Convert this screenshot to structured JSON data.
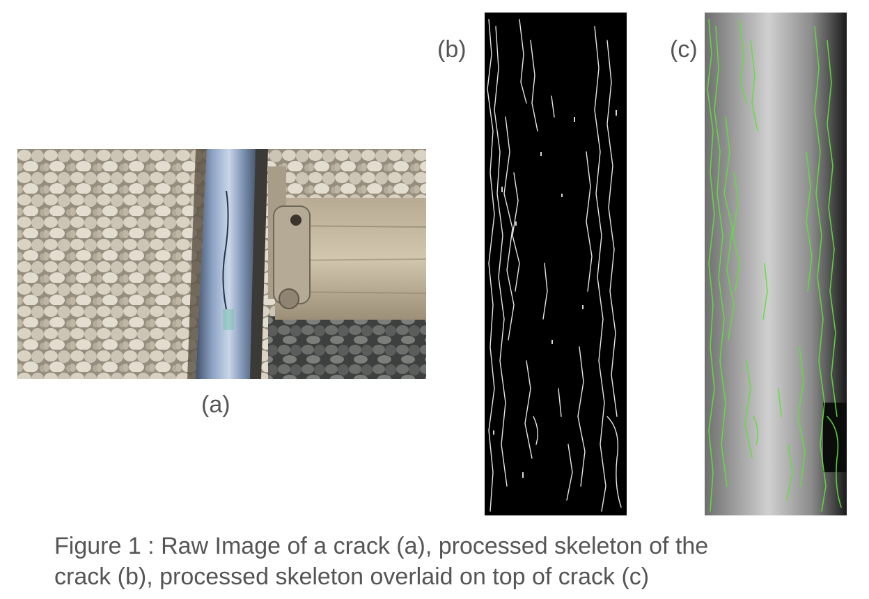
{
  "figure": {
    "panels": [
      {
        "id": "a",
        "label": "(a)",
        "content": "raw-photo"
      },
      {
        "id": "b",
        "label": "(b)",
        "content": "skeleton"
      },
      {
        "id": "c",
        "label": "(c)",
        "content": "skeleton-overlay"
      }
    ],
    "caption_line1": "Figure 1 : Raw Image of a crack (a), processed skeleton of the",
    "caption_line2": "crack (b), processed skeleton overlaid on top of crack (c)"
  },
  "colors": {
    "skeleton_stroke": "#ffffff",
    "overlay_stroke": "#5fe03a",
    "text": "#555555"
  }
}
